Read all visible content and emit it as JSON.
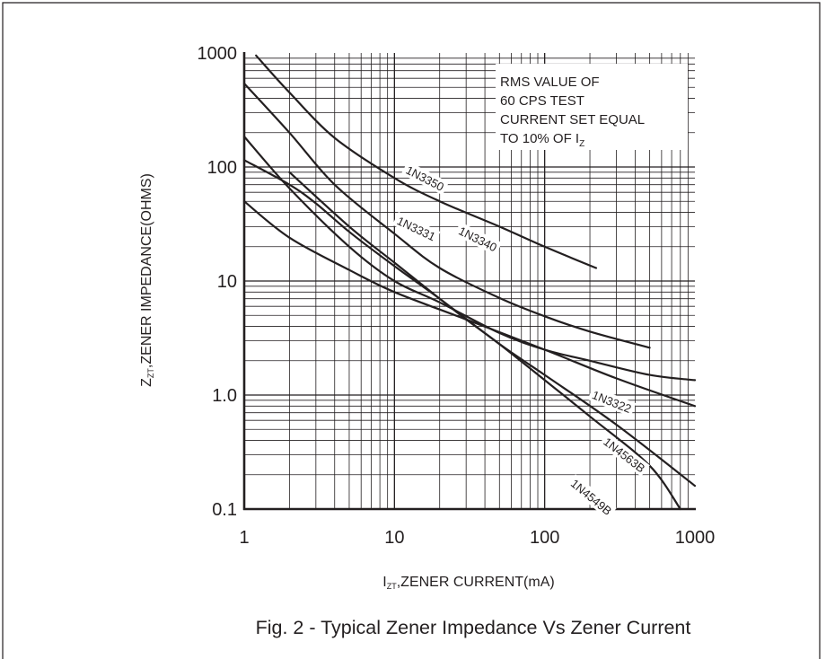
{
  "chart_data": {
    "type": "line",
    "title": "Fig. 2 - Typical Zener Impedance Vs Zener Current",
    "xlabel": {
      "main": "I",
      "sub": "ZT",
      "rest": ",ZENER CURRENT(mA)"
    },
    "ylabel": {
      "main": "Z",
      "sub": "ZT",
      "rest": ",ZENER IMPEDANCE(OHMS)"
    },
    "x_scale": "log",
    "y_scale": "log",
    "xlim": [
      1,
      1000
    ],
    "ylim": [
      0.1,
      1000
    ],
    "x_ticks": [
      {
        "value": 1,
        "label": "1"
      },
      {
        "value": 10,
        "label": "10"
      },
      {
        "value": 100,
        "label": "100"
      },
      {
        "value": 1000,
        "label": "1000"
      }
    ],
    "y_ticks": [
      {
        "value": 0.1,
        "label": "0.1"
      },
      {
        "value": 1,
        "label": "1.0"
      },
      {
        "value": 10,
        "label": "10"
      },
      {
        "value": 100,
        "label": "100"
      },
      {
        "value": 1000,
        "label": "1000"
      }
    ],
    "grid": true,
    "annotation": {
      "lines": [
        "RMS VALUE OF",
        "60 CPS TEST",
        "CURRENT SET EQUAL"
      ],
      "last_line": {
        "main": "TO 10% OF I",
        "sub": "Z"
      }
    },
    "series": [
      {
        "name": "1N3350",
        "label_at": {
          "x": 16,
          "y": 80
        },
        "x": [
          1.2,
          2,
          4,
          10,
          20,
          50,
          100,
          220
        ],
        "y": [
          950,
          450,
          180,
          80,
          50,
          30,
          20,
          13
        ]
      },
      {
        "name": "1N3340",
        "label_at": {
          "x": 36,
          "y": 23.5
        },
        "x": [
          1,
          2,
          4,
          10,
          20,
          50,
          100,
          200,
          500
        ],
        "y": [
          540,
          200,
          70,
          26,
          13,
          7.1,
          4.9,
          3.6,
          2.6
        ]
      },
      {
        "name": "1N3331",
        "label_at": {
          "x": 14,
          "y": 29
        },
        "x": [
          1,
          2,
          5,
          10,
          20,
          50,
          100,
          200,
          500,
          1000
        ],
        "y": [
          185,
          65,
          20,
          10,
          6.5,
          3.5,
          2.5,
          2,
          1.5,
          1.35
        ]
      },
      {
        "name": "1N3322",
        "label_at": {
          "x": 280,
          "y": 0.88
        },
        "x": [
          1,
          2,
          5,
          10,
          30,
          100,
          300,
          1000
        ],
        "y": [
          50,
          24,
          12.5,
          8,
          4.6,
          2.5,
          1.4,
          0.8
        ]
      },
      {
        "name": "1N4563B",
        "label_at": {
          "x": 340,
          "y": 0.3
        },
        "x": [
          1,
          2,
          3,
          5,
          10,
          20,
          50,
          100,
          300,
          1000
        ],
        "y": [
          115,
          70,
          48,
          27,
          13.5,
          7,
          2.8,
          1.5,
          0.55,
          0.16
        ]
      },
      {
        "name": "1N4549B",
        "label_at": {
          "x": 205,
          "y": 0.128
        },
        "x": [
          2,
          5,
          10,
          20,
          30,
          50,
          100,
          200,
          500,
          800
        ],
        "y": [
          90,
          30,
          14.5,
          7,
          4.6,
          2.8,
          1.35,
          0.65,
          0.24,
          0.1
        ]
      }
    ]
  }
}
